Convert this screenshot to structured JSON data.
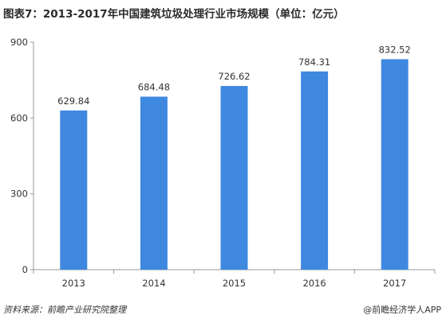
{
  "title": "图表7：2013-2017年中国建筑垃圾处理行业市场规模（单位：亿元）",
  "footer": {
    "source": "资料来源：前瞻产业研究院整理",
    "brand": "@前瞻经济学人APP"
  },
  "chart_data": {
    "type": "bar",
    "title": "图表7：2013-2017年中国建筑垃圾处理行业市场规模（单位：亿元）",
    "categories": [
      "2013",
      "2014",
      "2015",
      "2016",
      "2017"
    ],
    "values": [
      629.84,
      684.48,
      726.62,
      784.31,
      832.52
    ],
    "value_labels": [
      "629.84",
      "684.48",
      "726.62",
      "784.31",
      "832.52"
    ],
    "yticks": [
      0,
      300,
      600,
      900
    ],
    "ylim": [
      0,
      900
    ],
    "grid": false,
    "legend": "none",
    "bar_color": "#3f88e0"
  }
}
